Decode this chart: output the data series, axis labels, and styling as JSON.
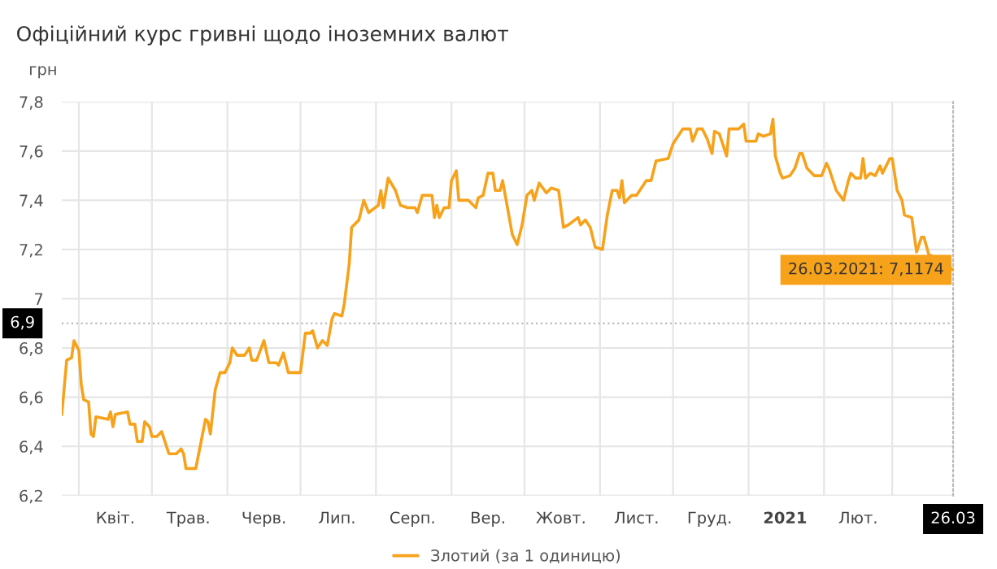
{
  "chart_data": {
    "type": "line",
    "title": "Офіційний курс гривні щодо іноземних валют",
    "ylabel": "грн",
    "x": [
      "2020-03-25",
      "2020-03-27",
      "2020-03-29",
      "2020-03-30",
      "2020-04-01",
      "2020-04-02",
      "2020-04-03",
      "2020-04-05",
      "2020-04-06",
      "2020-04-07",
      "2020-04-08",
      "2020-04-13",
      "2020-04-14",
      "2020-04-15",
      "2020-04-16",
      "2020-04-21",
      "2020-04-22",
      "2020-04-24",
      "2020-04-25",
      "2020-04-27",
      "2020-04-28",
      "2020-04-30",
      "2020-05-01",
      "2020-05-03",
      "2020-05-05",
      "2020-05-06",
      "2020-05-08",
      "2020-05-11",
      "2020-05-13",
      "2020-05-14",
      "2020-05-15",
      "2020-05-19",
      "2020-05-21",
      "2020-05-23",
      "2020-05-24",
      "2020-05-25",
      "2020-05-27",
      "2020-05-29",
      "2020-05-31",
      "2020-06-02",
      "2020-06-03",
      "2020-06-05",
      "2020-06-08",
      "2020-06-10",
      "2020-06-11",
      "2020-06-13",
      "2020-06-16",
      "2020-06-18",
      "2020-06-21",
      "2020-06-22",
      "2020-06-24",
      "2020-06-26",
      "2020-07-01",
      "2020-07-03",
      "2020-07-05",
      "2020-07-06",
      "2020-07-08",
      "2020-07-10",
      "2020-07-12",
      "2020-07-14",
      "2020-07-15",
      "2020-07-18",
      "2020-07-19",
      "2020-07-21",
      "2020-07-22",
      "2020-07-25",
      "2020-07-27",
      "2020-07-29",
      "2020-08-02",
      "2020-08-03",
      "2020-08-04",
      "2020-08-06",
      "2020-08-09",
      "2020-08-11",
      "2020-08-14",
      "2020-08-17",
      "2020-08-18",
      "2020-08-20",
      "2020-08-24",
      "2020-08-25",
      "2020-08-26",
      "2020-08-27",
      "2020-08-29",
      "2020-08-31",
      "2020-09-01",
      "2020-09-03",
      "2020-09-04",
      "2020-09-08",
      "2020-09-11",
      "2020-09-12",
      "2020-09-14",
      "2020-09-16",
      "2020-09-18",
      "2020-09-19",
      "2020-09-21",
      "2020-09-22",
      "2020-09-24",
      "2020-09-26",
      "2020-09-28",
      "2020-09-30",
      "2020-10-02",
      "2020-10-04",
      "2020-10-05",
      "2020-10-07",
      "2020-10-10",
      "2020-10-12",
      "2020-10-15",
      "2020-10-17",
      "2020-10-19",
      "2020-10-23",
      "2020-10-24",
      "2020-10-26",
      "2020-10-28",
      "2020-10-30",
      "2020-11-02",
      "2020-11-04",
      "2020-11-06",
      "2020-11-08",
      "2020-11-09",
      "2020-11-10",
      "2020-11-11",
      "2020-11-14",
      "2020-11-16",
      "2020-11-20",
      "2020-11-22",
      "2020-11-24",
      "2020-11-29",
      "2020-12-01",
      "2020-12-05",
      "2020-12-08",
      "2020-12-09",
      "2020-12-11",
      "2020-12-13",
      "2020-12-15",
      "2020-12-17",
      "2020-12-18",
      "2020-12-20",
      "2020-12-21",
      "2020-12-23",
      "2020-12-24",
      "2020-12-28",
      "2020-12-30",
      "2020-12-31",
      "2021-01-04",
      "2021-01-05",
      "2021-01-07",
      "2021-01-10",
      "2021-01-11",
      "2021-01-12",
      "2021-01-14",
      "2021-01-15",
      "2021-01-18",
      "2021-01-20",
      "2021-01-22",
      "2021-01-23",
      "2021-01-25",
      "2021-01-28",
      "2021-01-31",
      "2021-02-02",
      "2021-02-03",
      "2021-02-06",
      "2021-02-09",
      "2021-02-11",
      "2021-02-12",
      "2021-02-14",
      "2021-02-16",
      "2021-02-17",
      "2021-02-18",
      "2021-02-20",
      "2021-02-22",
      "2021-02-24",
      "2021-02-25",
      "2021-02-28",
      "2021-03-01",
      "2021-03-03",
      "2021-03-05",
      "2021-03-06",
      "2021-03-09",
      "2021-03-11",
      "2021-03-13",
      "2021-03-14",
      "2021-03-16",
      "2021-03-18",
      "2021-03-26"
    ],
    "series": [
      {
        "name": "Злотий (за 1 одиницю)",
        "color": "#f7a21b",
        "values": [
          6.53,
          6.75,
          6.76,
          6.83,
          6.79,
          6.65,
          6.59,
          6.58,
          6.45,
          6.44,
          6.52,
          6.51,
          6.54,
          6.48,
          6.53,
          6.54,
          6.49,
          6.49,
          6.42,
          6.42,
          6.5,
          6.48,
          6.44,
          6.44,
          6.46,
          6.43,
          6.37,
          6.37,
          6.39,
          6.37,
          6.31,
          6.31,
          6.41,
          6.51,
          6.5,
          6.45,
          6.63,
          6.7,
          6.7,
          6.74,
          6.8,
          6.77,
          6.77,
          6.8,
          6.75,
          6.75,
          6.83,
          6.74,
          6.74,
          6.73,
          6.78,
          6.7,
          6.7,
          6.86,
          6.86,
          6.87,
          6.8,
          6.83,
          6.81,
          6.92,
          6.94,
          6.93,
          6.98,
          7.14,
          7.29,
          7.32,
          7.4,
          7.35,
          7.38,
          7.44,
          7.37,
          7.49,
          7.44,
          7.38,
          7.37,
          7.37,
          7.35,
          7.42,
          7.42,
          7.33,
          7.38,
          7.33,
          7.37,
          7.37,
          7.48,
          7.52,
          7.4,
          7.4,
          7.37,
          7.41,
          7.42,
          7.51,
          7.51,
          7.44,
          7.44,
          7.48,
          7.37,
          7.26,
          7.22,
          7.3,
          7.42,
          7.44,
          7.4,
          7.47,
          7.43,
          7.45,
          7.44,
          7.29,
          7.3,
          7.33,
          7.3,
          7.32,
          7.29,
          7.21,
          7.2,
          7.34,
          7.44,
          7.44,
          7.41,
          7.48,
          7.39,
          7.42,
          7.42,
          7.48,
          7.48,
          7.56,
          7.57,
          7.63,
          7.69,
          7.69,
          7.64,
          7.69,
          7.69,
          7.65,
          7.59,
          7.68,
          7.67,
          7.64,
          7.58,
          7.69,
          7.69,
          7.71,
          7.64,
          7.64,
          7.67,
          7.66,
          7.67,
          7.73,
          7.58,
          7.51,
          7.49,
          7.5,
          7.53,
          7.59,
          7.59,
          7.53,
          7.5,
          7.5,
          7.55,
          7.53,
          7.44,
          7.4,
          7.48,
          7.51,
          7.49,
          7.49,
          7.57,
          7.49,
          7.51,
          7.5,
          7.54,
          7.51,
          7.57,
          7.57,
          7.44,
          7.4,
          7.34,
          7.33,
          7.19,
          7.25,
          7.25,
          7.18,
          7.17,
          7.1174
        ]
      }
    ],
    "xlim": [
      "2020-03-25",
      "2021-03-26"
    ],
    "xticks": [
      {
        "value": "2020-04-01",
        "label": null
      },
      {
        "value": "2020-04-16",
        "label": "Квіт."
      },
      {
        "value": "2020-05-01",
        "label": null
      },
      {
        "value": "2020-05-16",
        "label": "Трав."
      },
      {
        "value": "2020-06-01",
        "label": null
      },
      {
        "value": "2020-06-16",
        "label": "Черв."
      },
      {
        "value": "2020-07-01",
        "label": null
      },
      {
        "value": "2020-07-16",
        "label": "Лип."
      },
      {
        "value": "2020-08-01",
        "label": null
      },
      {
        "value": "2020-08-16",
        "label": "Серп."
      },
      {
        "value": "2020-09-01",
        "label": null
      },
      {
        "value": "2020-09-16",
        "label": "Вер."
      },
      {
        "value": "2020-10-01",
        "label": null
      },
      {
        "value": "2020-10-16",
        "label": "Жовт."
      },
      {
        "value": "2020-11-01",
        "label": null
      },
      {
        "value": "2020-11-16",
        "label": "Лист."
      },
      {
        "value": "2020-12-01",
        "label": null
      },
      {
        "value": "2020-12-16",
        "label": "Груд."
      },
      {
        "value": "2021-01-01",
        "label": null
      },
      {
        "value": "2021-01-16",
        "label": "2021"
      },
      {
        "value": "2021-02-01",
        "label": null
      },
      {
        "value": "2021-02-15",
        "label": "Лют."
      },
      {
        "value": "2021-03-01",
        "label": null
      },
      {
        "value": "2021-03-26",
        "label": "26.03"
      }
    ],
    "ylim": [
      6.2,
      7.8
    ],
    "yticks": [
      {
        "value": 6.2,
        "label": "6,2"
      },
      {
        "value": 6.4,
        "label": "6,4"
      },
      {
        "value": 6.6,
        "label": "6,6"
      },
      {
        "value": 6.8,
        "label": "6,8"
      },
      {
        "value": 7,
        "label": "7"
      },
      {
        "value": 7.2,
        "label": "7,2"
      },
      {
        "value": 7.4,
        "label": "7,4"
      },
      {
        "value": 7.6,
        "label": "7,6"
      },
      {
        "value": 7.8,
        "label": "7,8"
      }
    ],
    "ref_lines": [
      {
        "axis": "y",
        "value": 6.9,
        "label": "6,9",
        "color": "#bbbbbb",
        "line_style": "dotted"
      }
    ],
    "annotations": [
      {
        "text": "26.03.2021: 7,1174",
        "x": "2021-03-26",
        "y": 7.1174
      }
    ],
    "grid": true,
    "legend": "bottom",
    "marker": "none",
    "line_style": "solid"
  }
}
